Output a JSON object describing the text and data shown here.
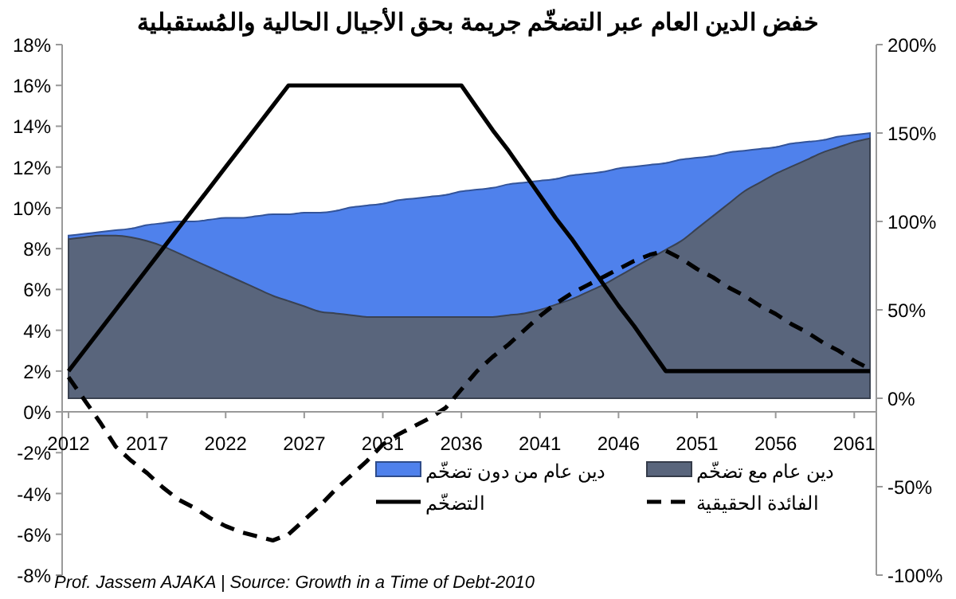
{
  "chart_data": {
    "type": "line",
    "title": "خفض الدين العام عبر التضخّم جريمة بحق الأجيال الحالية والمُستقبلية",
    "categories": [
      "2012",
      null,
      null,
      null,
      null,
      "2017",
      null,
      null,
      null,
      null,
      "2022",
      null,
      null,
      null,
      null,
      "2027",
      null,
      null,
      null,
      null,
      "2031",
      null,
      null,
      null,
      null,
      "2036",
      null,
      null,
      null,
      null,
      "2041",
      null,
      null,
      null,
      null,
      "2046",
      null,
      null,
      null,
      null,
      "2051",
      null,
      null,
      null,
      null,
      "2056",
      null,
      null,
      null,
      null,
      "2061",
      null
    ],
    "ylim": [
      -8,
      18
    ],
    "yticks": [
      {
        "value": -8,
        "label": "-8%"
      },
      {
        "value": -6,
        "label": "-6%"
      },
      {
        "value": -4,
        "label": "-4%"
      },
      {
        "value": -2,
        "label": "-2%"
      },
      {
        "value": 0,
        "label": "0%"
      },
      {
        "value": 2,
        "label": "2%"
      },
      {
        "value": 4,
        "label": "4%"
      },
      {
        "value": 6,
        "label": "6%"
      },
      {
        "value": 8,
        "label": "8%"
      },
      {
        "value": 10,
        "label": "10%"
      },
      {
        "value": 12,
        "label": "12%"
      },
      {
        "value": 14,
        "label": "14%"
      },
      {
        "value": 16,
        "label": "16%"
      },
      {
        "value": 18,
        "label": "18%"
      }
    ],
    "y2lim": [
      -100,
      200
    ],
    "y2ticks": [
      {
        "value": -100,
        "label": "-100%"
      },
      {
        "value": -50,
        "label": "-50%"
      },
      {
        "value": 0,
        "label": "0%"
      },
      {
        "value": 50,
        "label": "50%"
      },
      {
        "value": 100,
        "label": "100%"
      },
      {
        "value": 150,
        "label": "150%"
      },
      {
        "value": 200,
        "label": "200%"
      }
    ],
    "legend": "bottom",
    "series": [
      {
        "name": "دين عام من دون تضخّم",
        "type": "area",
        "axis": "y2",
        "color": "#4f81ec",
        "values": [
          92,
          93,
          94,
          95,
          96,
          98,
          99,
          100,
          100,
          101,
          102,
          102,
          103,
          104,
          104,
          105,
          105,
          106,
          108,
          109,
          110,
          112,
          113,
          114,
          115,
          117,
          118,
          119,
          121,
          122,
          123,
          124,
          126,
          127,
          128,
          130,
          131,
          132,
          133,
          135,
          136,
          137,
          139,
          140,
          141,
          142,
          144,
          145,
          146,
          148,
          149,
          150
        ]
      },
      {
        "name": "دين عام مع تضخّم",
        "type": "area",
        "axis": "y2",
        "color": "#59657c",
        "values": [
          90,
          91,
          92,
          92,
          91,
          89,
          86,
          82,
          78,
          74,
          70,
          66,
          62,
          58,
          55,
          52,
          49,
          48,
          47,
          46,
          46,
          46,
          46,
          46,
          46,
          46,
          46,
          46,
          47,
          48,
          50,
          53,
          56,
          60,
          64,
          69,
          74,
          79,
          84,
          89,
          96,
          103,
          110,
          117,
          122,
          127,
          131,
          135,
          139,
          142,
          145,
          147
        ]
      },
      {
        "name": "التضخّم",
        "line_style": "solid",
        "color": "#000000",
        "values": [
          2,
          3,
          4,
          5,
          6,
          7,
          8,
          9,
          10,
          11,
          12,
          13,
          14,
          15,
          16,
          16,
          16,
          16,
          16,
          16,
          16,
          16,
          16,
          16,
          16,
          16,
          14.9,
          13.8,
          12.8,
          11.7,
          10.6,
          9.5,
          8.5,
          7.4,
          6.3,
          5.2,
          4.2,
          3.1,
          2,
          2,
          2,
          2,
          2,
          2,
          2,
          2,
          2,
          2,
          2,
          2,
          2,
          2
        ]
      },
      {
        "name": "الفائدة الحقيقية",
        "line_style": "dashed",
        "color": "#000000",
        "values": [
          1.7,
          0.6,
          -0.5,
          -1.7,
          -2.4,
          -3.0,
          -3.7,
          -4.3,
          -4.7,
          -5.2,
          -5.6,
          -5.9,
          -6.1,
          -6.3,
          -6.0,
          -5.3,
          -4.6,
          -3.8,
          -3.1,
          -2.4,
          -1.6,
          -1.1,
          -0.7,
          -0.3,
          0.2,
          1.1,
          2.0,
          2.7,
          3.3,
          4.0,
          4.7,
          5.3,
          5.8,
          6.2,
          6.6,
          7.0,
          7.4,
          7.7,
          7.9,
          7.5,
          7.0,
          6.6,
          6.1,
          5.7,
          5.2,
          4.8,
          4.3,
          3.9,
          3.4,
          3.0,
          2.5,
          2.1
        ]
      }
    ],
    "annotations": [
      "Prof. Jassem AJAKA | Source: Growth in a Time of Debt-2010"
    ]
  }
}
